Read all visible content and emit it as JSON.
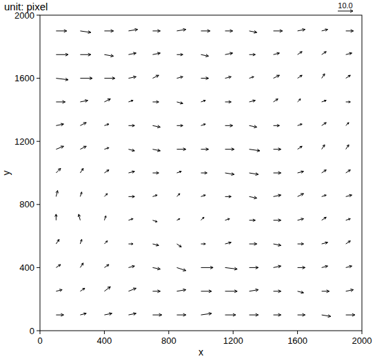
{
  "chart_data": {
    "type": "vector",
    "subtitle": "unit: pixel",
    "x_label": "x",
    "y_label": "y",
    "reference": {
      "value": 10,
      "label": "10.0"
    },
    "xlim": [
      0,
      2000
    ],
    "ylim": [
      0,
      2000
    ],
    "xticks": [
      0,
      400,
      800,
      1200,
      1600,
      2000
    ],
    "yticks": [
      0,
      400,
      800,
      1200,
      1600,
      2000
    ],
    "color": "#000000",
    "x": [
      100,
      250,
      400,
      550,
      700,
      850,
      1000,
      1150,
      1300,
      1450,
      1600,
      1750,
      1900
    ],
    "y": [
      1900,
      1750,
      1600,
      1450,
      1300,
      1150,
      1000,
      850,
      700,
      550,
      400,
      250,
      100
    ],
    "u": [
      [
        7,
        7,
        6,
        6,
        5,
        6,
        6,
        5,
        5,
        6,
        5,
        4,
        5
      ],
      [
        8,
        7,
        6,
        5,
        5,
        4,
        5,
        5,
        4,
        4,
        3,
        3,
        4
      ],
      [
        8,
        8,
        7,
        5,
        4,
        4,
        5,
        4,
        3,
        4,
        3,
        2,
        3
      ],
      [
        6,
        5,
        4,
        3,
        4,
        4,
        3,
        4,
        4,
        3,
        2,
        3,
        3
      ],
      [
        5,
        4,
        3,
        4,
        5,
        4,
        3,
        5,
        5,
        4,
        3,
        3,
        2
      ],
      [
        5,
        4,
        3,
        4,
        5,
        6,
        5,
        6,
        7,
        5,
        3,
        2,
        2
      ],
      [
        3,
        2,
        3,
        4,
        4,
        3,
        4,
        6,
        6,
        5,
        4,
        3,
        3
      ],
      [
        1,
        1,
        2,
        4,
        3,
        2,
        3,
        4,
        5,
        5,
        4,
        3,
        4
      ],
      [
        0,
        -1,
        1,
        3,
        3,
        2,
        2,
        3,
        4,
        5,
        4,
        3,
        3
      ],
      [
        2,
        1,
        2,
        3,
        4,
        3,
        3,
        4,
        5,
        5,
        4,
        4,
        3
      ],
      [
        3,
        2,
        3,
        4,
        5,
        6,
        8,
        8,
        6,
        5,
        5,
        4,
        4
      ],
      [
        4,
        3,
        4,
        5,
        5,
        6,
        7,
        8,
        6,
        5,
        4,
        5,
        5
      ],
      [
        5,
        4,
        5,
        5,
        6,
        6,
        7,
        7,
        6,
        5,
        5,
        6,
        6
      ]
    ],
    "v": [
      [
        0,
        -1,
        0,
        1,
        0,
        1,
        0,
        0,
        -1,
        0,
        1,
        1,
        0
      ],
      [
        0,
        0,
        -1,
        1,
        1,
        0,
        -1,
        1,
        0,
        1,
        2,
        2,
        1
      ],
      [
        -1,
        0,
        0,
        1,
        2,
        1,
        0,
        1,
        1,
        2,
        2,
        3,
        2
      ],
      [
        0,
        1,
        2,
        1,
        0,
        -1,
        1,
        0,
        1,
        2,
        2,
        1,
        0
      ],
      [
        1,
        2,
        1,
        0,
        -1,
        0,
        1,
        0,
        -1,
        0,
        1,
        2,
        2
      ],
      [
        2,
        2,
        1,
        -1,
        -1,
        0,
        0,
        0,
        -1,
        0,
        2,
        3,
        3
      ],
      [
        3,
        3,
        2,
        1,
        0,
        1,
        0,
        -1,
        -1,
        0,
        1,
        2,
        2
      ],
      [
        4,
        3,
        2,
        0,
        1,
        2,
        1,
        0,
        -1,
        1,
        2,
        1,
        1
      ],
      [
        4,
        4,
        3,
        1,
        -1,
        1,
        2,
        1,
        0,
        0,
        1,
        2,
        1
      ],
      [
        3,
        3,
        2,
        0,
        -1,
        -2,
        0,
        1,
        0,
        -1,
        0,
        1,
        2
      ],
      [
        2,
        3,
        2,
        1,
        -1,
        -2,
        0,
        -1,
        0,
        1,
        0,
        1,
        1
      ],
      [
        1,
        2,
        3,
        2,
        0,
        1,
        0,
        0,
        1,
        0,
        -1,
        0,
        1
      ],
      [
        0,
        1,
        1,
        1,
        0,
        0,
        1,
        0,
        0,
        0,
        0,
        -1,
        0
      ]
    ]
  }
}
